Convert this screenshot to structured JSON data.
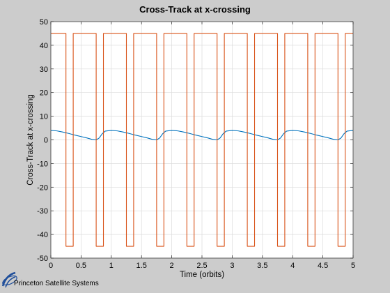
{
  "chart_data": {
    "type": "line",
    "title": "Cross-Track at x-crossing",
    "xlabel": "Time (orbits)",
    "ylabel": "Cross-Track at x-crossing",
    "xlim": [
      0,
      5
    ],
    "ylim": [
      -50,
      50
    ],
    "xticks": [
      0,
      0.5,
      1,
      1.5,
      2,
      2.5,
      3,
      3.5,
      4,
      4.5,
      5
    ],
    "xtick_labels": [
      "0",
      "0.5",
      "1",
      "1.5",
      "2",
      "2.5",
      "3",
      "3.5",
      "4",
      "4.5",
      "5"
    ],
    "yticks": [
      -50,
      -40,
      -30,
      -20,
      -10,
      0,
      10,
      20,
      30,
      40,
      50
    ],
    "ytick_labels": [
      "-50",
      "-40",
      "-30",
      "-20",
      "-10",
      "0",
      "10",
      "20",
      "30",
      "40",
      "50"
    ],
    "grid": true,
    "series": [
      {
        "color": "#0072bd",
        "x": [
          0,
          0.1,
          0.2,
          0.3,
          0.4,
          0.5,
          0.6,
          0.68,
          0.75,
          0.8,
          0.85,
          0.9,
          1.0,
          1.1,
          1.2,
          1.3,
          1.4,
          1.5,
          1.6,
          1.68,
          1.75,
          1.8,
          1.85,
          1.9,
          2.0,
          2.1,
          2.2,
          2.3,
          2.4,
          2.5,
          2.6,
          2.68,
          2.75,
          2.8,
          2.85,
          2.9,
          3.0,
          3.1,
          3.2,
          3.3,
          3.4,
          3.5,
          3.6,
          3.68,
          3.75,
          3.8,
          3.85,
          3.9,
          4.0,
          4.1,
          4.2,
          4.3,
          4.4,
          4.5,
          4.6,
          4.68,
          4.75,
          4.8,
          4.85,
          4.9,
          5.0
        ],
        "y": [
          4.0,
          3.8,
          3.3,
          2.7,
          2.0,
          1.4,
          0.8,
          0.2,
          0.0,
          0.8,
          2.6,
          3.7,
          4.0,
          3.8,
          3.3,
          2.7,
          2.0,
          1.4,
          0.8,
          0.2,
          0.0,
          0.8,
          2.6,
          3.7,
          4.0,
          3.8,
          3.3,
          2.7,
          2.0,
          1.4,
          0.8,
          0.2,
          0.0,
          0.8,
          2.6,
          3.7,
          4.0,
          3.8,
          3.3,
          2.7,
          2.0,
          1.4,
          0.8,
          0.2,
          0.0,
          0.8,
          2.6,
          3.7,
          4.0,
          3.8,
          3.3,
          2.7,
          2.0,
          1.4,
          0.8,
          0.2,
          0.0,
          0.8,
          2.6,
          3.7,
          4.0
        ]
      },
      {
        "color": "#d95319",
        "x": [
          0,
          0.25,
          0.25,
          0.37,
          0.37,
          0.75,
          0.75,
          0.87,
          0.87,
          1.25,
          1.25,
          1.37,
          1.37,
          1.75,
          1.75,
          1.87,
          1.87,
          2.25,
          2.25,
          2.37,
          2.37,
          2.75,
          2.75,
          2.87,
          2.87,
          3.25,
          3.25,
          3.37,
          3.37,
          3.75,
          3.75,
          3.87,
          3.87,
          4.25,
          4.25,
          4.37,
          4.37,
          4.75,
          4.75,
          4.87,
          4.87,
          5.0
        ],
        "y": [
          45,
          45,
          -45,
          -45,
          45,
          45,
          -45,
          -45,
          45,
          45,
          -45,
          -45,
          45,
          45,
          -45,
          -45,
          45,
          45,
          -45,
          -45,
          45,
          45,
          -45,
          -45,
          45,
          45,
          -45,
          -45,
          45,
          45,
          -45,
          -45,
          45,
          45,
          -45,
          -45,
          45,
          45,
          -45,
          -45,
          45,
          45
        ]
      }
    ]
  },
  "logo": {
    "text": "Princeton Satellite Systems"
  }
}
